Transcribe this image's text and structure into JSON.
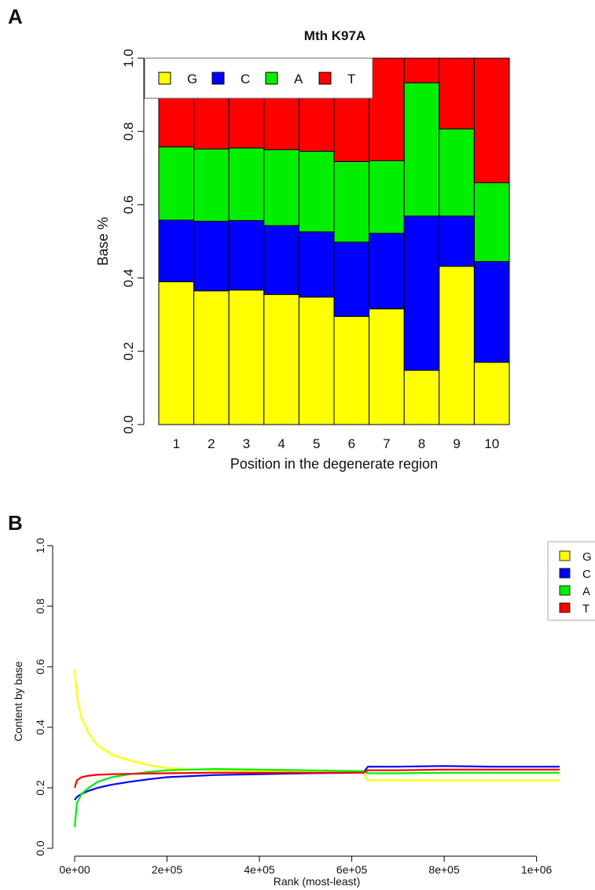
{
  "panels": {
    "a_letter": "A",
    "b_letter": "B"
  },
  "colors": {
    "G": "#ffff00",
    "C": "#0000ff",
    "A": "#00ee00",
    "T": "#ff0000"
  },
  "chart_data": [
    {
      "type": "bar",
      "stacked": true,
      "title": "Mth K97A",
      "xlabel": "Position in the degenerate region",
      "ylabel": "Base %",
      "ylim": [
        0,
        1
      ],
      "yticks": [
        "0.0",
        "0.2",
        "0.4",
        "0.6",
        "0.8",
        "1.0"
      ],
      "categories": [
        "1",
        "2",
        "3",
        "4",
        "5",
        "6",
        "7",
        "8",
        "9",
        "10"
      ],
      "legend": {
        "placement": "top-left",
        "entries": [
          "G",
          "C",
          "A",
          "T"
        ]
      },
      "series": [
        {
          "name": "G",
          "values": [
            0.39,
            0.365,
            0.367,
            0.355,
            0.348,
            0.295,
            0.316,
            0.148,
            0.432,
            0.17
          ]
        },
        {
          "name": "C",
          "values": [
            0.168,
            0.19,
            0.19,
            0.188,
            0.178,
            0.203,
            0.206,
            0.421,
            0.137,
            0.275
          ]
        },
        {
          "name": "A",
          "values": [
            0.2,
            0.197,
            0.198,
            0.207,
            0.22,
            0.22,
            0.198,
            0.364,
            0.238,
            0.215
          ]
        },
        {
          "name": "T",
          "values": [
            0.242,
            0.248,
            0.245,
            0.25,
            0.254,
            0.282,
            0.28,
            0.067,
            0.193,
            0.34
          ]
        }
      ]
    },
    {
      "type": "line",
      "xlabel": "Rank (most-least)",
      "ylabel": "Content by base",
      "xlim": [
        0,
        1050000
      ],
      "ylim": [
        0,
        1
      ],
      "xticks": [
        {
          "value": 0,
          "label": "0e+00"
        },
        {
          "value": 200000,
          "label": "2e+05"
        },
        {
          "value": 400000,
          "label": "4e+05"
        },
        {
          "value": 600000,
          "label": "6e+05"
        },
        {
          "value": 800000,
          "label": "8e+05"
        },
        {
          "value": 1000000,
          "label": "1e+06"
        }
      ],
      "yticks": [
        "0.0",
        "0.2",
        "0.4",
        "0.6",
        "0.8",
        "1.0"
      ],
      "legend": {
        "placement": "top-right",
        "entries": [
          "G",
          "C",
          "A",
          "T"
        ]
      },
      "series": [
        {
          "name": "G",
          "x": [
            0,
            5000,
            15000,
            30000,
            50000,
            80000,
            120000,
            160000,
            200000,
            300000,
            400000,
            500000,
            625000,
            635000,
            700000,
            800000,
            900000,
            1000000,
            1050000
          ],
          "y": [
            0.59,
            0.5,
            0.43,
            0.38,
            0.34,
            0.31,
            0.29,
            0.275,
            0.265,
            0.258,
            0.255,
            0.252,
            0.25,
            0.225,
            0.225,
            0.225,
            0.225,
            0.225,
            0.225
          ]
        },
        {
          "name": "C",
          "x": [
            0,
            5000,
            15000,
            30000,
            50000,
            80000,
            120000,
            160000,
            200000,
            300000,
            400000,
            500000,
            625000,
            635000,
            700000,
            800000,
            900000,
            1000000,
            1050000
          ],
          "y": [
            0.16,
            0.17,
            0.18,
            0.19,
            0.2,
            0.21,
            0.22,
            0.228,
            0.235,
            0.242,
            0.245,
            0.248,
            0.25,
            0.27,
            0.27,
            0.272,
            0.27,
            0.27,
            0.27
          ]
        },
        {
          "name": "A",
          "x": [
            0,
            5000,
            15000,
            30000,
            50000,
            80000,
            120000,
            160000,
            200000,
            300000,
            400000,
            500000,
            625000,
            635000,
            700000,
            800000,
            900000,
            1000000,
            1050000
          ],
          "y": [
            0.07,
            0.15,
            0.18,
            0.2,
            0.22,
            0.235,
            0.245,
            0.252,
            0.258,
            0.262,
            0.26,
            0.258,
            0.255,
            0.248,
            0.248,
            0.25,
            0.25,
            0.25,
            0.25
          ]
        },
        {
          "name": "T",
          "x": [
            0,
            5000,
            15000,
            30000,
            50000,
            80000,
            120000,
            160000,
            200000,
            300000,
            400000,
            500000,
            625000,
            635000,
            700000,
            800000,
            900000,
            1000000,
            1050000
          ],
          "y": [
            0.2,
            0.225,
            0.235,
            0.24,
            0.243,
            0.245,
            0.246,
            0.247,
            0.248,
            0.25,
            0.25,
            0.25,
            0.25,
            0.258,
            0.258,
            0.26,
            0.26,
            0.26,
            0.26
          ]
        }
      ]
    }
  ]
}
